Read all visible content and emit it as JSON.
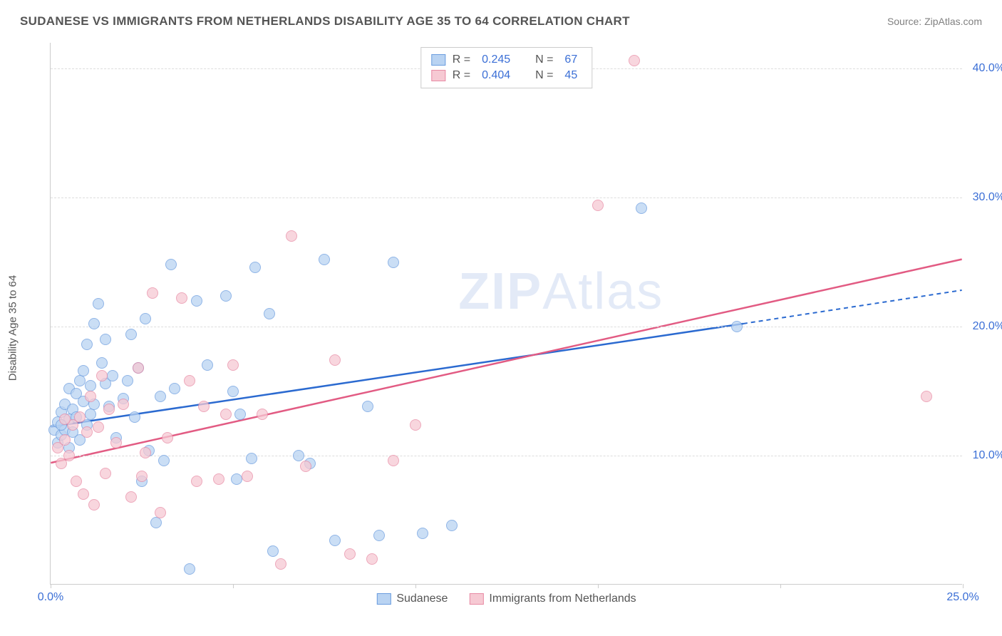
{
  "header": {
    "title": "SUDANESE VS IMMIGRANTS FROM NETHERLANDS DISABILITY AGE 35 TO 64 CORRELATION CHART",
    "source_prefix": "Source: ",
    "source_name": "ZipAtlas.com"
  },
  "watermark": {
    "zip": "ZIP",
    "atlas": "Atlas"
  },
  "chart": {
    "type": "scatter",
    "y_axis_label": "Disability Age 35 to 64",
    "xlim": [
      0,
      25
    ],
    "ylim": [
      0,
      42
    ],
    "x_ticks": [
      0,
      5,
      10,
      15,
      20,
      25
    ],
    "x_tick_labels": [
      "0.0%",
      "",
      "",
      "",
      "",
      "25.0%"
    ],
    "y_ticks": [
      10,
      20,
      30,
      40
    ],
    "y_tick_labels": [
      "10.0%",
      "20.0%",
      "30.0%",
      "40.0%"
    ],
    "grid_color": "#dddddd",
    "background_color": "#ffffff",
    "axis_color": "#cccccc",
    "tick_label_color": "#3b6fd6",
    "point_radius": 8,
    "series": [
      {
        "name": "Sudanese",
        "fill": "#b9d3f2",
        "stroke": "#6b9ddf",
        "trend_color": "#2b6ad0",
        "R": 0.245,
        "N": 67,
        "trend": {
          "x1": 0,
          "y1": 12.2,
          "x2": 19,
          "y2": 20.2,
          "x2_dash": 25,
          "y2_dash": 22.8
        },
        "points": [
          [
            0.1,
            12.0
          ],
          [
            0.2,
            11.0
          ],
          [
            0.2,
            12.6
          ],
          [
            0.3,
            13.4
          ],
          [
            0.3,
            11.6
          ],
          [
            0.4,
            12.0
          ],
          [
            0.4,
            14.0
          ],
          [
            0.5,
            10.6
          ],
          [
            0.5,
            12.8
          ],
          [
            0.5,
            15.2
          ],
          [
            0.6,
            11.8
          ],
          [
            0.6,
            13.6
          ],
          [
            0.7,
            14.8
          ],
          [
            0.7,
            13.0
          ],
          [
            0.8,
            15.8
          ],
          [
            0.8,
            11.2
          ],
          [
            0.9,
            14.2
          ],
          [
            0.9,
            16.6
          ],
          [
            1.0,
            12.4
          ],
          [
            1.0,
            18.6
          ],
          [
            1.1,
            15.4
          ],
          [
            1.1,
            13.2
          ],
          [
            1.2,
            20.2
          ],
          [
            1.2,
            14.0
          ],
          [
            1.3,
            21.8
          ],
          [
            1.4,
            17.2
          ],
          [
            1.5,
            15.6
          ],
          [
            1.5,
            19.0
          ],
          [
            1.6,
            13.8
          ],
          [
            1.7,
            16.2
          ],
          [
            1.8,
            11.4
          ],
          [
            2.0,
            14.4
          ],
          [
            2.1,
            15.8
          ],
          [
            2.2,
            19.4
          ],
          [
            2.3,
            13.0
          ],
          [
            2.4,
            16.8
          ],
          [
            2.5,
            8.0
          ],
          [
            2.6,
            20.6
          ],
          [
            2.7,
            10.4
          ],
          [
            2.9,
            4.8
          ],
          [
            3.0,
            14.6
          ],
          [
            3.1,
            9.6
          ],
          [
            3.3,
            24.8
          ],
          [
            3.4,
            15.2
          ],
          [
            3.8,
            1.2
          ],
          [
            4.0,
            22.0
          ],
          [
            4.3,
            17.0
          ],
          [
            4.8,
            22.4
          ],
          [
            5.0,
            15.0
          ],
          [
            5.1,
            8.2
          ],
          [
            5.2,
            13.2
          ],
          [
            5.5,
            9.8
          ],
          [
            5.6,
            24.6
          ],
          [
            6.0,
            21.0
          ],
          [
            6.1,
            2.6
          ],
          [
            6.8,
            10.0
          ],
          [
            7.1,
            9.4
          ],
          [
            7.5,
            25.2
          ],
          [
            7.8,
            3.4
          ],
          [
            8.7,
            13.8
          ],
          [
            9.0,
            3.8
          ],
          [
            9.4,
            25.0
          ],
          [
            10.2,
            4.0
          ],
          [
            11.0,
            4.6
          ],
          [
            16.2,
            29.2
          ],
          [
            18.8,
            20.0
          ],
          [
            0.3,
            12.4
          ]
        ]
      },
      {
        "name": "Immigrants from Netherlands",
        "fill": "#f6c9d3",
        "stroke": "#e88ba5",
        "trend_color": "#e25b83",
        "R": 0.404,
        "N": 45,
        "trend": {
          "x1": 0,
          "y1": 9.4,
          "x2": 25,
          "y2": 25.2,
          "x2_dash": 25,
          "y2_dash": 25.2
        },
        "points": [
          [
            0.2,
            10.6
          ],
          [
            0.3,
            9.4
          ],
          [
            0.4,
            11.2
          ],
          [
            0.5,
            10.0
          ],
          [
            0.6,
            12.4
          ],
          [
            0.7,
            8.0
          ],
          [
            0.8,
            13.0
          ],
          [
            0.9,
            7.0
          ],
          [
            1.0,
            11.8
          ],
          [
            1.1,
            14.6
          ],
          [
            1.2,
            6.2
          ],
          [
            1.3,
            12.2
          ],
          [
            1.4,
            16.2
          ],
          [
            1.5,
            8.6
          ],
          [
            1.6,
            13.6
          ],
          [
            1.8,
            11.0
          ],
          [
            2.0,
            14.0
          ],
          [
            2.2,
            6.8
          ],
          [
            2.4,
            16.8
          ],
          [
            2.5,
            8.4
          ],
          [
            2.8,
            22.6
          ],
          [
            3.0,
            5.6
          ],
          [
            3.2,
            11.4
          ],
          [
            3.6,
            22.2
          ],
          [
            3.8,
            15.8
          ],
          [
            4.0,
            8.0
          ],
          [
            4.2,
            13.8
          ],
          [
            4.6,
            8.2
          ],
          [
            4.8,
            13.2
          ],
          [
            5.0,
            17.0
          ],
          [
            5.4,
            8.4
          ],
          [
            5.8,
            13.2
          ],
          [
            6.3,
            1.6
          ],
          [
            6.6,
            27.0
          ],
          [
            7.0,
            9.2
          ],
          [
            7.8,
            17.4
          ],
          [
            8.2,
            2.4
          ],
          [
            8.8,
            2.0
          ],
          [
            9.4,
            9.6
          ],
          [
            10.0,
            12.4
          ],
          [
            15.0,
            29.4
          ],
          [
            16.0,
            40.6
          ],
          [
            24.0,
            14.6
          ],
          [
            0.4,
            12.8
          ],
          [
            2.6,
            10.2
          ]
        ]
      }
    ],
    "top_legend": {
      "R_label": "R =",
      "N_label": "N ="
    },
    "bottom_legend_labels": [
      "Sudanese",
      "Immigrants from Netherlands"
    ]
  }
}
